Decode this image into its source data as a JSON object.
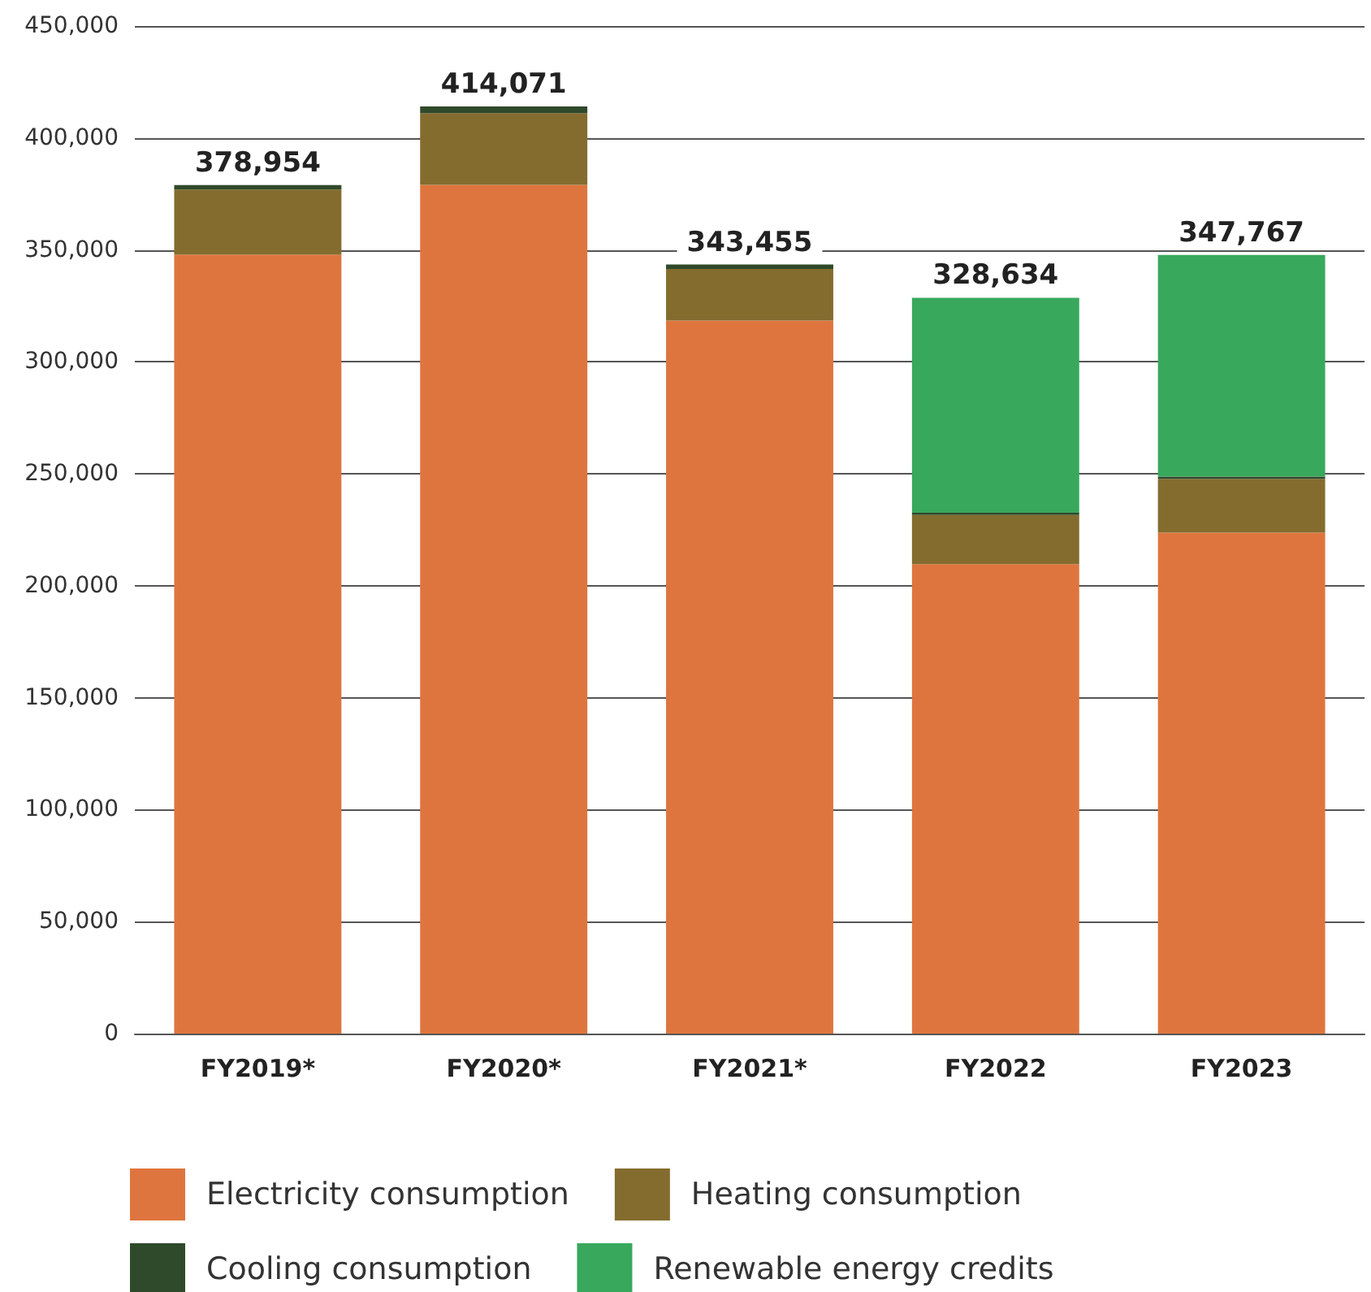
{
  "chart_data": {
    "type": "bar",
    "stacked": true,
    "categories": [
      "FY2019*",
      "FY2020*",
      "FY2021*",
      "FY2022",
      "FY2023"
    ],
    "series": [
      {
        "name": "Electricity consumption",
        "color": "#df753e",
        "values": [
          347954,
          379071,
          318455,
          209634,
          223767
        ]
      },
      {
        "name": "Heating consumption",
        "color": "#846c2f",
        "values": [
          29000,
          32000,
          23000,
          22000,
          24000
        ]
      },
      {
        "name": "Cooling consumption",
        "color": "#2f4a2a",
        "values": [
          2000,
          3000,
          2000,
          1000,
          1000
        ]
      },
      {
        "name": "Renewable energy credits",
        "color": "#38a85c",
        "values": [
          0,
          0,
          0,
          96000,
          99000
        ]
      }
    ],
    "totals": [
      "378,954",
      "414,071",
      "343,455",
      "328,634",
      "347,767"
    ],
    "ylim": [
      0,
      450000
    ],
    "yticks": [
      0,
      {
        "value": 50000,
        "label": "50,000"
      },
      {
        "value": 100000,
        "label": "100,000"
      },
      {
        "value": 150000,
        "label": "150,000"
      },
      {
        "value": 200000,
        "label": "200,000"
      },
      {
        "value": 250000,
        "label": "250,000"
      },
      {
        "value": 300000,
        "label": "300,000"
      },
      {
        "value": 350000,
        "label": "350,000"
      },
      {
        "value": 400000,
        "label": "400,000"
      },
      {
        "value": 450000,
        "label": "450,000"
      }
    ],
    "grid": "y",
    "legend": "bottom"
  }
}
